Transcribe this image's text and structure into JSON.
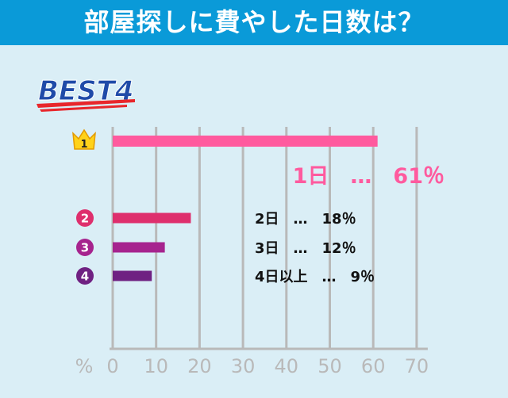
{
  "title": "部屋探しに費やした日数は？",
  "badge": "BEST4",
  "colors": {
    "title_bg": "#0a9ad8",
    "background": "#daeef6",
    "grid": "#b9b9b9",
    "rank1": "#ff5a9e",
    "rank2": "#de2f6d",
    "rank3": "#a6238e",
    "rank4": "#6f2182",
    "badge_text": "#1f4aa8",
    "crown": "#ffd21a"
  },
  "chart_data": {
    "type": "bar",
    "orientation": "horizontal",
    "xlabel": "%",
    "xlim": [
      0,
      70
    ],
    "xticks": [
      0,
      10,
      20,
      30,
      40,
      50,
      60,
      70
    ],
    "grid": true,
    "ranks": [
      "1",
      "2",
      "3",
      "4"
    ],
    "categories": [
      "1日",
      "2日",
      "3日",
      "4日以上"
    ],
    "values": [
      61,
      18,
      12,
      9
    ],
    "labels": [
      "1日　…　61％",
      "2日　…　18％",
      "3日　…　12％",
      "4日以上　…　9％"
    ]
  }
}
